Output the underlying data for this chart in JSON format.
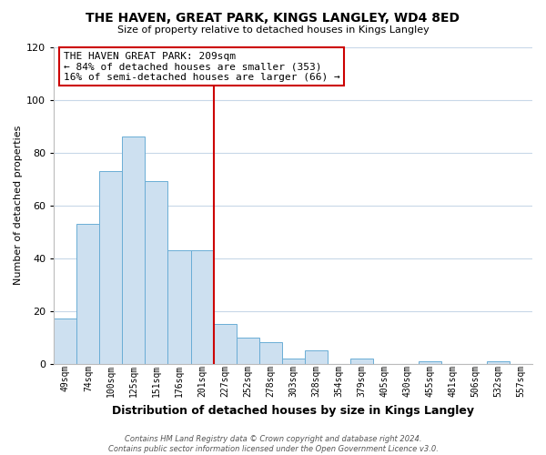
{
  "title": "THE HAVEN, GREAT PARK, KINGS LANGLEY, WD4 8ED",
  "subtitle": "Size of property relative to detached houses in Kings Langley",
  "xlabel": "Distribution of detached houses by size in Kings Langley",
  "ylabel": "Number of detached properties",
  "bar_labels": [
    "49sqm",
    "74sqm",
    "100sqm",
    "125sqm",
    "151sqm",
    "176sqm",
    "201sqm",
    "227sqm",
    "252sqm",
    "278sqm",
    "303sqm",
    "328sqm",
    "354sqm",
    "379sqm",
    "405sqm",
    "430sqm",
    "455sqm",
    "481sqm",
    "506sqm",
    "532sqm",
    "557sqm"
  ],
  "bar_values": [
    17,
    53,
    73,
    86,
    69,
    43,
    43,
    15,
    10,
    8,
    2,
    5,
    0,
    2,
    0,
    0,
    1,
    0,
    0,
    1,
    0
  ],
  "bar_color": "#cde0f0",
  "bar_edge_color": "#6aadd5",
  "vline_color": "#cc0000",
  "vline_bar_index": 6,
  "ylim": [
    0,
    120
  ],
  "yticks": [
    0,
    20,
    40,
    60,
    80,
    100,
    120
  ],
  "annotation_title": "THE HAVEN GREAT PARK: 209sqm",
  "annotation_line1": "← 84% of detached houses are smaller (353)",
  "annotation_line2": "16% of semi-detached houses are larger (66) →",
  "annotation_box_color": "#ffffff",
  "annotation_box_edge": "#cc0000",
  "footer_line1": "Contains HM Land Registry data © Crown copyright and database right 2024.",
  "footer_line2": "Contains public sector information licensed under the Open Government Licence v3.0.",
  "background_color": "#ffffff",
  "grid_color": "#c8d8e8",
  "title_fontsize": 10,
  "subtitle_fontsize": 8,
  "ylabel_fontsize": 8,
  "xlabel_fontsize": 9,
  "tick_fontsize": 7,
  "footer_fontsize": 6,
  "ann_fontsize": 8
}
